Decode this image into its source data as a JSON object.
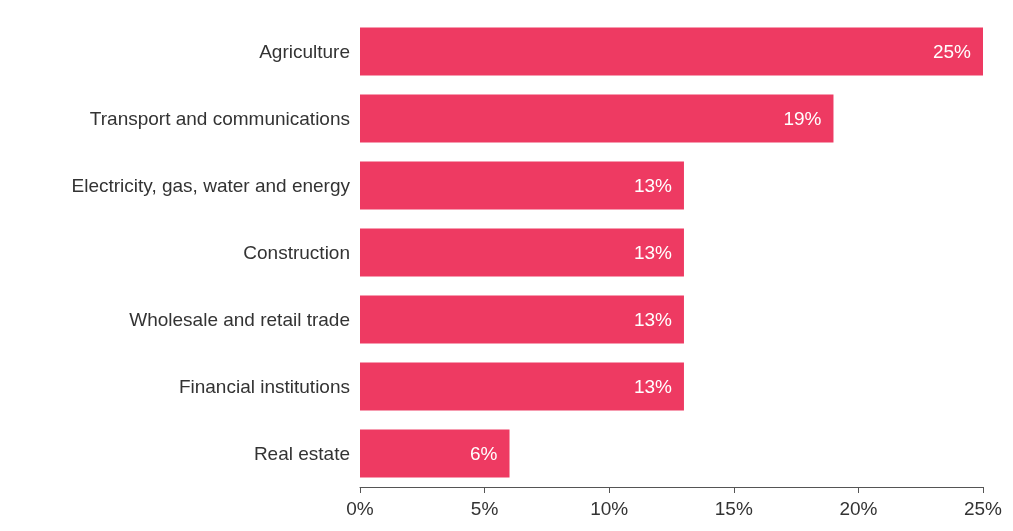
{
  "chart_data": {
    "type": "bar",
    "orientation": "horizontal",
    "categories": [
      "Agriculture",
      "Transport and communications",
      "Electricity, gas, water and energy",
      "Construction",
      "Wholesale and retail trade",
      "Financial institutions",
      "Real estate"
    ],
    "values": [
      25,
      19,
      13,
      13,
      13,
      13,
      6
    ],
    "value_labels": [
      "25%",
      "19%",
      "13%",
      "13%",
      "13%",
      "13%",
      "6%"
    ],
    "color": "#ee3a62",
    "xlim": [
      0,
      25
    ],
    "xticks": [
      {
        "value": 0,
        "label": "0%"
      },
      {
        "value": 5,
        "label": "5%"
      },
      {
        "value": 10,
        "label": "10%"
      },
      {
        "value": 15,
        "label": "15%"
      },
      {
        "value": 20,
        "label": "20%"
      },
      {
        "value": 25,
        "label": "25%"
      }
    ],
    "grid": false
  }
}
